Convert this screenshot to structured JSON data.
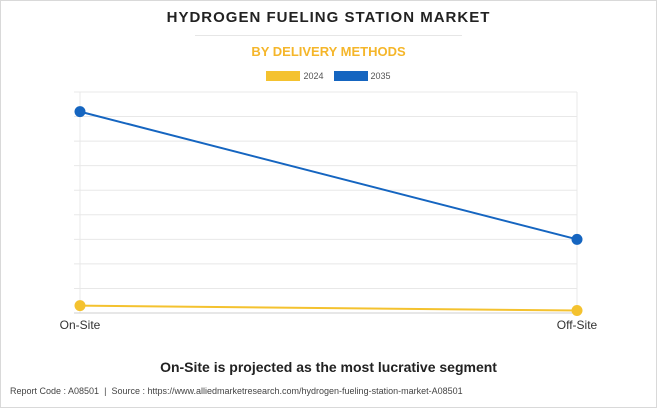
{
  "colors": {
    "series_2024": "#f4c22f",
    "series_2035": "#1565c0",
    "subtitle": "#f5b62a"
  },
  "chart_data": {
    "type": "line",
    "title": "HYDROGEN FUELING STATION MARKET",
    "subtitle": "BY DELIVERY METHODS",
    "categories": [
      "On-Site",
      "Off-Site"
    ],
    "series": [
      {
        "name": "2024",
        "values": [
          3,
          1
        ]
      },
      {
        "name": "2035",
        "values": [
          82,
          30
        ]
      }
    ],
    "ylim": [
      0,
      90
    ],
    "grid": true,
    "legend": "top-center"
  },
  "caption": "On-Site is projected as the most lucrative segment",
  "footer": {
    "report_code": "Report Code : A08501",
    "separator": "|",
    "source": "Source : https://www.alliedmarketresearch.com/hydrogen-fueling-station-market-A08501"
  }
}
